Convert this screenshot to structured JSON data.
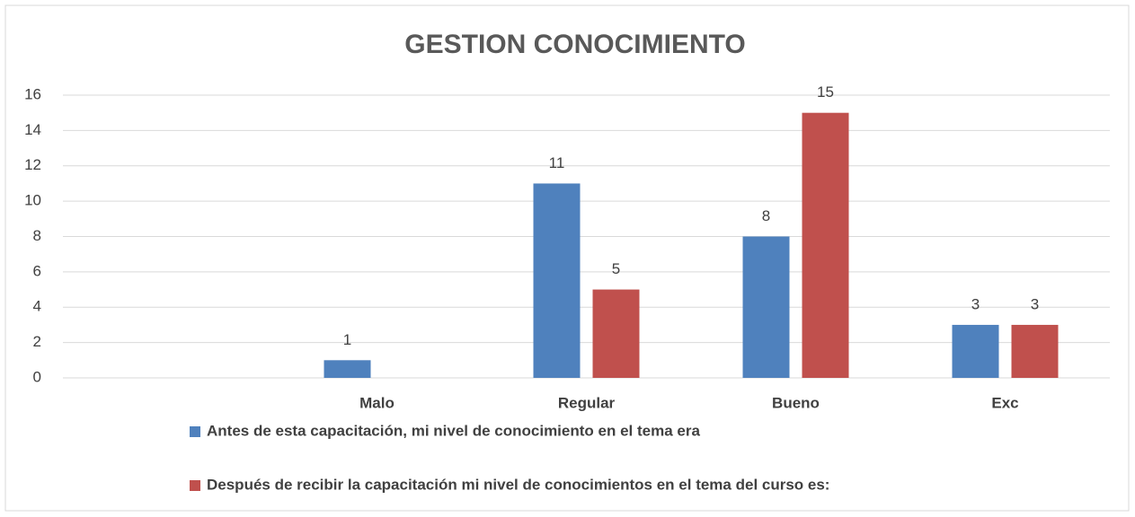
{
  "chart_data": {
    "type": "bar",
    "title": "GESTION CONOCIMIENTO",
    "categories": [
      null,
      "Malo",
      "Regular",
      "Bueno",
      "Exc"
    ],
    "series": [
      {
        "name": "Antes de esta capacitación, mi nivel de conocimiento en el tema era",
        "color": "#4f81bd",
        "values": [
          null,
          1,
          11,
          8,
          3
        ]
      },
      {
        "name": "Después de recibir la capacitación  mi nivel de conocimientos  en el tema del curso es:",
        "color": "#c0504d",
        "values": [
          null,
          null,
          5,
          15,
          3
        ]
      }
    ],
    "ylim": [
      0,
      16
    ],
    "yticks": [
      0,
      2,
      4,
      6,
      8,
      10,
      12,
      14,
      16
    ],
    "grid": true,
    "legend": "bottom"
  }
}
